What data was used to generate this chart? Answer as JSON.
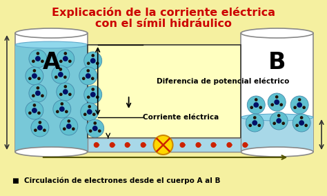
{
  "bg_color": "#F5F0A0",
  "title_line1": "Explicación de la corriente eléctrica",
  "title_line2": "con el símil hidráulico",
  "title_color": "#CC0000",
  "title_fontsize": 11.5,
  "label_A": "A",
  "label_B": "B",
  "text_diferencia": "Diferencia de potencial eléctrico",
  "text_corriente": "Corriente eléctrica",
  "text_circulacion": "■  Circulación de electrones desde el cuerpo A al B",
  "water_color_A": "#78C8D8",
  "water_color_B": "#A8D8E8",
  "cylinder_fill": "#FFFFFF",
  "cylinder_edge": "#888888",
  "electron_body": "#60C0D0",
  "electron_dot_center": "#001166",
  "electron_dot_outer": "#221100",
  "pipe_color": "#A8D8E8",
  "pipe_edge": "#888888",
  "box_fill": "#FFFFC0",
  "box_edge": "#333333",
  "arrow_color": "#222222",
  "resistor_yellow": "#FFD700",
  "resistor_x_color": "#CC2200",
  "dot_color": "#CC2200",
  "electron_arc_color": "#003366"
}
